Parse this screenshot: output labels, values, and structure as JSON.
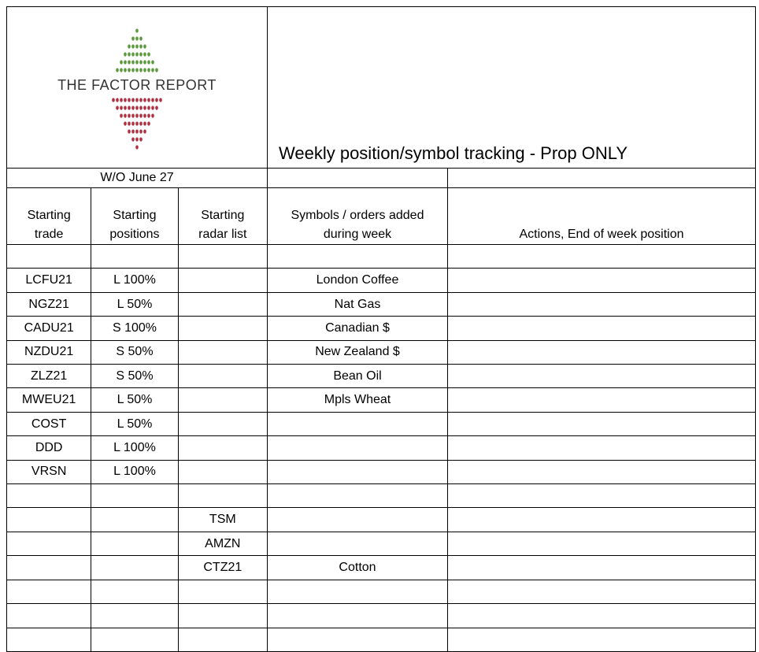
{
  "header": {
    "logo_text": "THE FACTOR REPORT",
    "title": "Weekly position/symbol tracking - Prop ONLY"
  },
  "table": {
    "week": "W/O June 27",
    "headers": [
      [
        "Starting",
        "trade"
      ],
      [
        "Starting",
        "positions"
      ],
      [
        "Starting",
        "radar list"
      ],
      [
        "Symbols / orders added",
        "during week"
      ],
      [
        "Actions, End of week position"
      ]
    ],
    "rows": [
      [
        null,
        null,
        null,
        null,
        null
      ],
      [
        "LCFU21",
        "L 100%",
        null,
        "London Coffee",
        null
      ],
      [
        "NGZ21",
        "L 50%",
        null,
        "Nat Gas",
        null
      ],
      [
        "CADU21",
        "S 100%",
        null,
        "Canadian $",
        null
      ],
      [
        "NZDU21",
        "S 50%",
        null,
        "New Zealand $",
        null
      ],
      [
        "ZLZ21",
        "S 50%",
        null,
        "Bean Oil",
        null
      ],
      [
        "MWEU21",
        "L 50%",
        null,
        "Mpls Wheat",
        null
      ],
      [
        "COST",
        "L 50%",
        null,
        null,
        null
      ],
      [
        "DDD",
        "L 100%",
        null,
        null,
        null
      ],
      [
        "VRSN",
        "L 100%",
        null,
        null,
        null
      ],
      [
        null,
        null,
        null,
        null,
        null
      ],
      [
        null,
        null,
        "TSM",
        null,
        null
      ],
      [
        null,
        null,
        "AMZN",
        null,
        null
      ],
      [
        null,
        null,
        "CTZ21",
        "Cotton",
        null
      ],
      [
        null,
        null,
        null,
        null,
        null
      ],
      [
        null,
        null,
        null,
        null,
        null
      ],
      [
        null,
        null,
        null,
        null,
        null
      ]
    ]
  }
}
